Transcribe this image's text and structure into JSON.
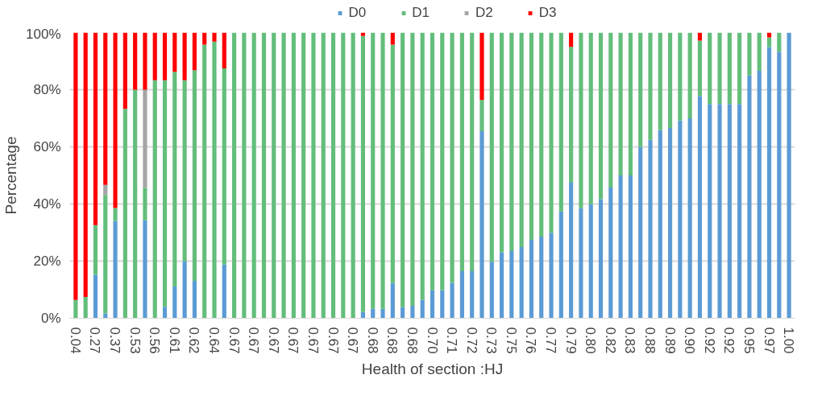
{
  "chart_data": {
    "type": "bar",
    "stacked": true,
    "xlabel": "Health of section :HJ",
    "ylabel": "Percentage",
    "categories": [
      "0.04",
      null,
      "0.27",
      null,
      "0.37",
      null,
      "0.53",
      null,
      "0.56",
      null,
      "0.61",
      null,
      "0.62",
      null,
      "0.64",
      null,
      "0.67",
      null,
      "0.67",
      null,
      "0.67",
      null,
      "0.67",
      null,
      "0.67",
      null,
      "0.67",
      null,
      "0.67",
      null,
      "0.68",
      null,
      "0.68",
      null,
      "0.68",
      null,
      "0.70",
      null,
      "0.71",
      null,
      "0.72",
      null,
      "0.73",
      null,
      "0.75",
      null,
      "0.76",
      null,
      "0.77",
      null,
      "0.79",
      null,
      "0.80",
      null,
      "0.82",
      null,
      "0.83",
      null,
      "0.88",
      null,
      "0.89",
      null,
      "0.90",
      null,
      "0.92",
      null,
      "0.92",
      null,
      "0.95",
      null,
      "0.97",
      null,
      "1.00"
    ],
    "series": [
      {
        "name": "D0",
        "color": "#5b9bd5",
        "values": [
          0,
          0,
          15.2,
          1.7,
          34.1,
          0,
          0,
          34.3,
          0,
          4.0,
          11.1,
          19.9,
          13.1,
          0,
          0,
          18.8,
          0,
          0,
          0,
          0,
          0,
          0,
          0,
          0,
          0,
          0,
          0,
          0,
          0,
          2.2,
          3.3,
          3.3,
          12.3,
          3.9,
          4.4,
          6.5,
          9.8,
          9.8,
          12.4,
          16.5,
          16.5,
          65.5,
          19.8,
          23.1,
          23.5,
          24.9,
          27.5,
          28.6,
          29.9,
          37.4,
          47.5,
          38.5,
          39.9,
          41.7,
          45.8,
          50.0,
          50.0,
          59.9,
          62.5,
          65.9,
          66.6,
          69.2,
          70.0,
          77.8,
          75.0,
          75.0,
          75.0,
          75.0,
          85.0,
          86.6,
          94.9,
          93.3,
          100
        ]
      },
      {
        "name": "D1",
        "color": "#63be7b",
        "values": [
          6.4,
          7.5,
          17.4,
          41.5,
          4.5,
          73.3,
          80.0,
          11.3,
          83.3,
          79.3,
          75.2,
          63.4,
          73.7,
          95.8,
          96.8,
          68.7,
          100,
          100,
          100,
          100,
          100,
          100,
          100,
          100,
          100,
          100,
          100,
          100,
          100,
          96.6,
          96.7,
          96.7,
          83.5,
          96.1,
          95.6,
          93.5,
          90.2,
          90.2,
          87.6,
          83.5,
          83.5,
          10.9,
          80.2,
          76.9,
          76.5,
          75.1,
          72.5,
          71.4,
          70.1,
          62.6,
          47.5,
          61.5,
          60.1,
          58.3,
          54.2,
          50.0,
          50.0,
          40.1,
          37.5,
          34.1,
          33.4,
          30.8,
          30.0,
          19.4,
          25.0,
          25.0,
          25.0,
          25.0,
          15.0,
          13.4,
          3.4,
          6.7,
          0
        ]
      },
      {
        "name": "D2",
        "color": "#a5a5a5",
        "values": [
          0,
          0,
          0,
          3.5,
          0,
          0,
          0,
          34.4,
          0,
          0,
          0,
          0,
          0,
          0,
          0,
          0,
          0,
          0,
          0,
          0,
          0,
          0,
          0,
          0,
          0,
          0,
          0,
          0,
          0,
          0,
          0,
          0,
          0,
          0,
          0,
          0,
          0,
          0,
          0,
          0,
          0,
          0,
          0,
          0,
          0,
          0,
          0,
          0,
          0,
          0,
          0,
          0,
          0,
          0,
          0,
          0,
          0,
          0,
          0,
          0,
          0,
          0,
          0,
          0,
          0,
          0,
          0,
          0,
          0,
          0,
          0,
          0,
          0
        ]
      },
      {
        "name": "D3",
        "color": "#ff0000",
        "values": [
          93.6,
          92.5,
          67.4,
          53.3,
          61.4,
          26.7,
          20.0,
          20.0,
          16.7,
          16.7,
          13.7,
          16.7,
          13.2,
          4.2,
          3.2,
          12.5,
          0,
          0,
          0,
          0,
          0,
          0,
          0,
          0,
          0,
          0,
          0,
          0,
          0,
          1.2,
          0,
          0,
          4.2,
          0,
          0,
          0,
          0,
          0,
          0,
          0,
          0,
          23.6,
          0,
          0,
          0,
          0,
          0,
          0,
          0,
          0,
          5.0,
          0,
          0,
          0,
          0,
          0,
          0,
          0,
          0,
          0,
          0,
          0,
          0,
          2.8,
          0,
          0,
          0,
          0,
          0,
          0,
          1.7,
          0,
          0
        ]
      }
    ],
    "ylim": [
      0,
      100
    ],
    "yticks": [
      {
        "value": 0,
        "label": "0%"
      },
      {
        "value": 20,
        "label": "20%"
      },
      {
        "value": 40,
        "label": "40%"
      },
      {
        "value": 60,
        "label": "60%"
      },
      {
        "value": 80,
        "label": "80%"
      },
      {
        "value": 100,
        "label": "100%"
      }
    ],
    "grid": "y",
    "legend": "top"
  }
}
